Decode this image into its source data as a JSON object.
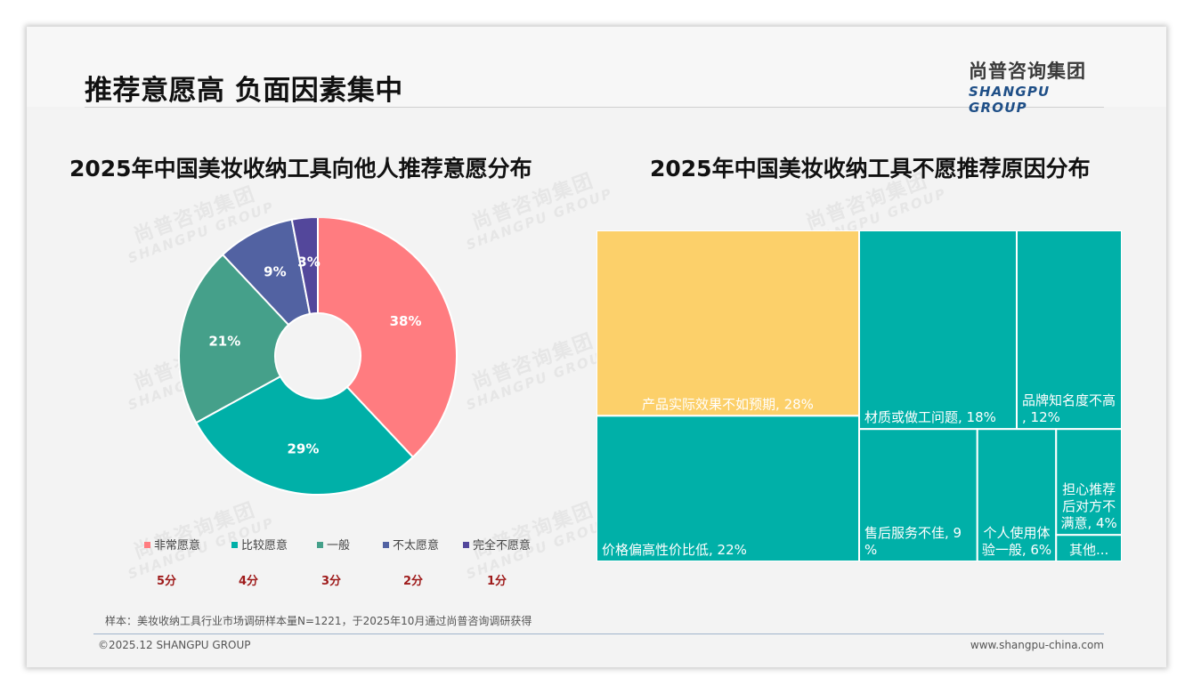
{
  "page": {
    "title": "推荐意愿高 负面因素集中",
    "logo_cn": "尚普咨询集团",
    "logo_en": "SHANGPU GROUP",
    "watermark_cn": "尚普咨询集团",
    "watermark_en": "SHANGPU GROUP",
    "note": "样本：美妆收纳工具行业市场调研样本量N=1221，于2025年10月通过尚普咨询调研获得",
    "copyright": "©2025.12 SHANGPU GROUP",
    "website": "www.shangpu-china.com"
  },
  "chart_data": [
    {
      "type": "pie",
      "donut": true,
      "title": "2025年中国美妆收纳工具向他人推荐意愿分布",
      "categories": [
        "非常愿意",
        "比较愿意",
        "一般",
        "不太愿意",
        "完全不愿意"
      ],
      "values": [
        38,
        29,
        21,
        9,
        3
      ],
      "labels": [
        "38%",
        "29%",
        "21%",
        "9%",
        "3%"
      ],
      "scores": [
        "5分",
        "4分",
        "3分",
        "2分",
        "1分"
      ],
      "colors": [
        "#ff7c80",
        "#00b0a8",
        "#45a08a",
        "#5262a2",
        "#53479b"
      ],
      "legend": "bottom"
    },
    {
      "type": "treemap",
      "title": "2025年中国美妆收纳工具不愿推荐原因分布",
      "items": [
        {
          "name": "产品实际效果不如预期",
          "value": 28,
          "label": "产品实际效果不如预期, 28%",
          "color": "#fcd06a"
        },
        {
          "name": "价格偏高性价比低",
          "value": 22,
          "label": "价格偏高性价比低, 22%",
          "color": "#00b0a8"
        },
        {
          "name": "材质或做工问题",
          "value": 18,
          "label": "材质或做工问题, 18%",
          "color": "#00b0a8"
        },
        {
          "name": "品牌知名度不高",
          "value": 12,
          "label": "品牌知名度不高, 12%",
          "color": "#00b0a8"
        },
        {
          "name": "售后服务不佳",
          "value": 9,
          "label": "售后服务不佳, 9%",
          "color": "#00b0a8"
        },
        {
          "name": "个人使用体验一般",
          "value": 6,
          "label": "个人使用体验一般, 6%",
          "color": "#00b0a8"
        },
        {
          "name": "担心推荐后对方不满意",
          "value": 4,
          "label": "担心推荐后对方不满意, 4%",
          "color": "#00b0a8"
        },
        {
          "name": "其他",
          "value": 1,
          "label": "其他...",
          "color": "#00b0a8"
        }
      ]
    }
  ]
}
